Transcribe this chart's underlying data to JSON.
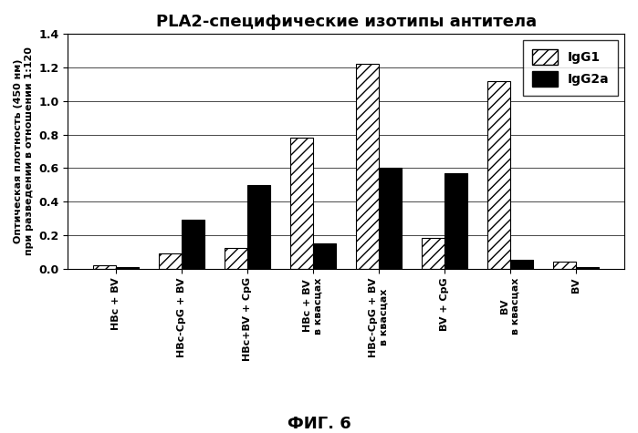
{
  "title": "PLA2-специфические изотипы антитела",
  "ylabel": "Оптическая плотность (450 нм)\nпри разведении в отношении 1:120",
  "fig_label": "ФИГ. 6",
  "categories": [
    "HBc + BV",
    "HBc-CpG + BV",
    "HBc+BV + CpG",
    "HBc + BV\nв квасцах",
    "HBc-CpG + BV\nв квасцах",
    "BV + CpG",
    "BV\nв квасцах",
    "BV"
  ],
  "igG1_values": [
    0.02,
    0.09,
    0.12,
    0.78,
    1.22,
    0.18,
    1.12,
    0.04
  ],
  "igG2a_values": [
    0.01,
    0.29,
    0.5,
    0.15,
    0.6,
    0.57,
    0.05,
    0.01
  ],
  "ylim": [
    0,
    1.4
  ],
  "yticks": [
    0.0,
    0.2,
    0.4,
    0.6,
    0.8,
    1.0,
    1.2,
    1.4
  ],
  "igG1_color": "white",
  "igG1_hatch": "///",
  "igG2a_color": "black",
  "igG2a_hatch": "",
  "legend_labels": [
    "IgG1",
    "IgG2a"
  ],
  "bar_width": 0.35,
  "title_fontsize": 13,
  "axis_fontsize": 8,
  "tick_fontsize": 9,
  "legend_fontsize": 10,
  "fig_label_fontsize": 13
}
